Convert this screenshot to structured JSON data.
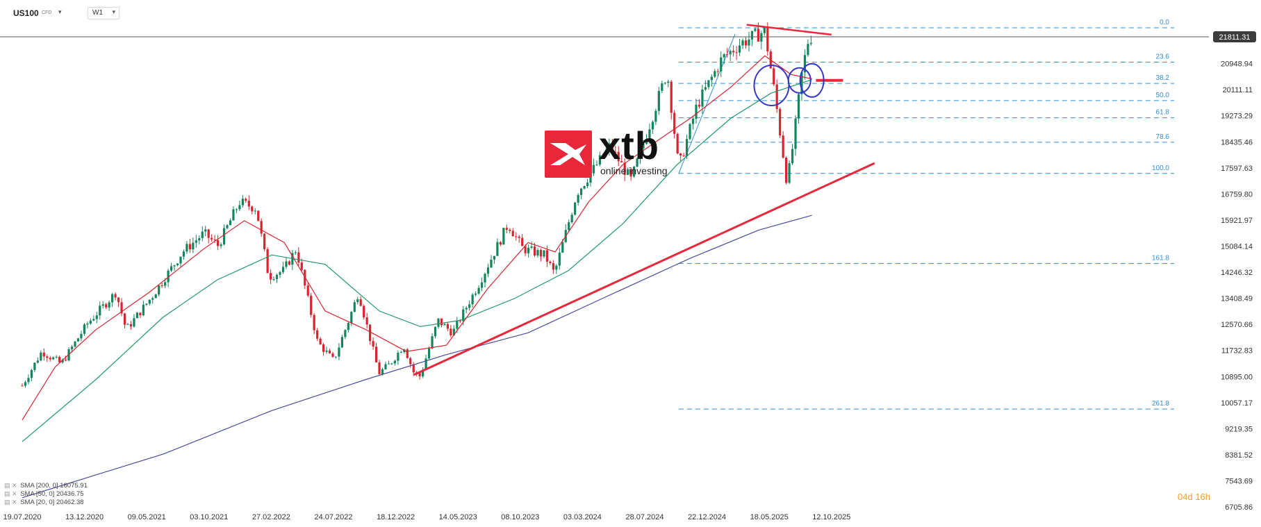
{
  "header": {
    "symbol": "US100",
    "symbol_type": "CFD",
    "timeframe": "W1"
  },
  "logo": {
    "brand": "xtb",
    "tagline": "online investing",
    "brand_color": "#e8273a"
  },
  "countdown": {
    "days": "04d",
    "hours": "16h",
    "color": "#f0a02a"
  },
  "indicators": [
    {
      "label": "SMA [200, 0]",
      "value": "16075.91",
      "color": "#4a4a9c"
    },
    {
      "label": "SMA [50, 0]",
      "value": "20436.75",
      "color": "#1f9a67"
    },
    {
      "label": "SMA [20, 0]",
      "value": "20462.38",
      "color": "#d9232e"
    }
  ],
  "chart_data": {
    "type": "candlestick",
    "instrument": "US100 CFD",
    "timeframe": "W1",
    "current_price": 21811.31,
    "current_price_label": "21811.31",
    "ylim": [
      6705.86,
      22280
    ],
    "y_ticks": [
      "20948.94",
      "20111.11",
      "19273.29",
      "18435.46",
      "17597.63",
      "16759.80",
      "15921.97",
      "15084.14",
      "14246.32",
      "13408.49",
      "12570.66",
      "11732.83",
      "10895.00",
      "10057.17",
      "9219.35",
      "8381.52",
      "7543.69",
      "6705.86"
    ],
    "x_ticks": [
      "19.07.2020",
      "13.12.2020",
      "09.05.2021",
      "03.10.2021",
      "27.02.2022",
      "24.07.2022",
      "18.12.2022",
      "14.05.2023",
      "08.10.2023",
      "03.03.2024",
      "28.07.2024",
      "22.12.2024",
      "18.05.2025",
      "12.10.2025"
    ],
    "price_path": [
      [
        "2020-07-19",
        10600
      ],
      [
        "2020-09-01",
        11700
      ],
      [
        "2020-10-15",
        11300
      ],
      [
        "2020-12-13",
        12600
      ],
      [
        "2021-02-15",
        13600
      ],
      [
        "2021-03-10",
        12400
      ],
      [
        "2021-05-09",
        13500
      ],
      [
        "2021-07-15",
        14900
      ],
      [
        "2021-09-01",
        15500
      ],
      [
        "2021-10-03",
        15100
      ],
      [
        "2021-11-20",
        16500
      ],
      [
        "2021-12-28",
        16300
      ],
      [
        "2022-01-25",
        14100
      ],
      [
        "2022-02-27",
        14300
      ],
      [
        "2022-03-28",
        15000
      ],
      [
        "2022-05-15",
        12000
      ],
      [
        "2022-06-20",
        11400
      ],
      [
        "2022-07-24",
        12700
      ],
      [
        "2022-08-15",
        13600
      ],
      [
        "2022-09-30",
        11000
      ],
      [
        "2022-10-25",
        11300
      ],
      [
        "2022-11-25",
        11900
      ],
      [
        "2022-12-18",
        11000
      ],
      [
        "2023-01-01",
        10900
      ],
      [
        "2023-02-10",
        12700
      ],
      [
        "2023-03-15",
        12300
      ],
      [
        "2023-05-14",
        13900
      ],
      [
        "2023-07-18",
        15800
      ],
      [
        "2023-08-20",
        15000
      ],
      [
        "2023-10-08",
        14800
      ],
      [
        "2023-10-30",
        14200
      ],
      [
        "2023-12-20",
        16800
      ],
      [
        "2024-03-03",
        18300
      ],
      [
        "2024-04-20",
        17200
      ],
      [
        "2024-07-10",
        20700
      ],
      [
        "2024-08-05",
        17600
      ],
      [
        "2024-09-15",
        19600
      ],
      [
        "2024-11-10",
        21100
      ],
      [
        "2024-12-22",
        21600
      ],
      [
        "2025-02-15",
        22000
      ],
      [
        "2025-03-10",
        19900
      ],
      [
        "2025-04-06",
        17100
      ],
      [
        "2025-04-20",
        18400
      ],
      [
        "2025-05-10",
        20700
      ],
      [
        "2025-05-25",
        21800
      ],
      [
        "2025-06-01",
        21811.31
      ]
    ],
    "sma_20": [
      [
        "2020-07-19",
        9500
      ],
      [
        "2020-10-01",
        11200
      ],
      [
        "2021-01-01",
        12400
      ],
      [
        "2021-05-01",
        13600
      ],
      [
        "2021-09-01",
        15000
      ],
      [
        "2021-12-01",
        15900
      ],
      [
        "2022-03-01",
        15200
      ],
      [
        "2022-06-01",
        13000
      ],
      [
        "2022-09-01",
        12400
      ],
      [
        "2022-12-01",
        11700
      ],
      [
        "2023-03-01",
        11900
      ],
      [
        "2023-06-01",
        13700
      ],
      [
        "2023-09-01",
        15200
      ],
      [
        "2023-11-01",
        14900
      ],
      [
        "2024-01-15",
        16500
      ],
      [
        "2024-04-01",
        17700
      ],
      [
        "2024-07-01",
        18600
      ],
      [
        "2024-09-01",
        19200
      ],
      [
        "2024-12-01",
        20200
      ],
      [
        "2025-02-15",
        21200
      ],
      [
        "2025-04-15",
        20600
      ],
      [
        "2025-06-01",
        20462.38
      ]
    ],
    "sma_50": [
      [
        "2020-07-19",
        8800
      ],
      [
        "2021-01-01",
        10800
      ],
      [
        "2021-06-01",
        12800
      ],
      [
        "2021-10-01",
        14000
      ],
      [
        "2022-02-01",
        14800
      ],
      [
        "2022-06-01",
        14500
      ],
      [
        "2022-10-01",
        13000
      ],
      [
        "2023-01-01",
        12500
      ],
      [
        "2023-04-01",
        12700
      ],
      [
        "2023-08-01",
        13400
      ],
      [
        "2023-12-01",
        14300
      ],
      [
        "2024-04-01",
        15800
      ],
      [
        "2024-08-01",
        17700
      ],
      [
        "2024-12-01",
        19200
      ],
      [
        "2025-03-01",
        20000
      ],
      [
        "2025-06-01",
        20436.75
      ]
    ],
    "sma_200": [
      [
        "2020-07-19",
        7000
      ],
      [
        "2021-06-01",
        8400
      ],
      [
        "2022-02-01",
        9800
      ],
      [
        "2022-09-01",
        10800
      ],
      [
        "2023-03-01",
        11600
      ],
      [
        "2023-09-01",
        12300
      ],
      [
        "2024-03-01",
        13500
      ],
      [
        "2024-09-01",
        14700
      ],
      [
        "2025-02-01",
        15600
      ],
      [
        "2025-06-01",
        16075.91
      ]
    ],
    "fibonacci": {
      "high": 22100,
      "low": 17420,
      "levels": [
        {
          "label": "0.0",
          "ratio": 0.0
        },
        {
          "label": "23.6",
          "ratio": 0.236
        },
        {
          "label": "38.2",
          "ratio": 0.382
        },
        {
          "label": "50.0",
          "ratio": 0.5
        },
        {
          "label": "61.8",
          "ratio": 0.618
        },
        {
          "label": "78.6",
          "ratio": 0.786
        },
        {
          "label": "100.0",
          "ratio": 1.0
        },
        {
          "label": "161.8",
          "ratio": 1.618
        },
        {
          "label": "261.8",
          "ratio": 2.618
        }
      ]
    },
    "drawings": {
      "uptrend_line": [
        [
          "2022-12-18",
          10950
        ],
        [
          "2025-10-20",
          17750
        ]
      ],
      "downtrend_line": [
        [
          "2025-01-05",
          22200
        ],
        [
          "2025-07-15",
          21880
        ]
      ],
      "support_marker": [
        [
          "2025-06-10",
          20410
        ],
        [
          "2025-08-10",
          20410
        ]
      ],
      "fib_anchor_line": [
        [
          "2024-08-05",
          17420
        ],
        [
          "2024-12-10",
          21900
        ]
      ],
      "circles": [
        [
          "2025-03-02",
          20250
        ],
        [
          "2025-05-04",
          20410
        ],
        [
          "2025-06-01",
          20410
        ]
      ]
    },
    "colors": {
      "up": "#11865a",
      "down": "#d9232e",
      "fib": "#2f8ed8",
      "trend": "#e8273a",
      "circle": "#3535c8"
    },
    "grid": false,
    "legend_position": "bottom-left"
  }
}
